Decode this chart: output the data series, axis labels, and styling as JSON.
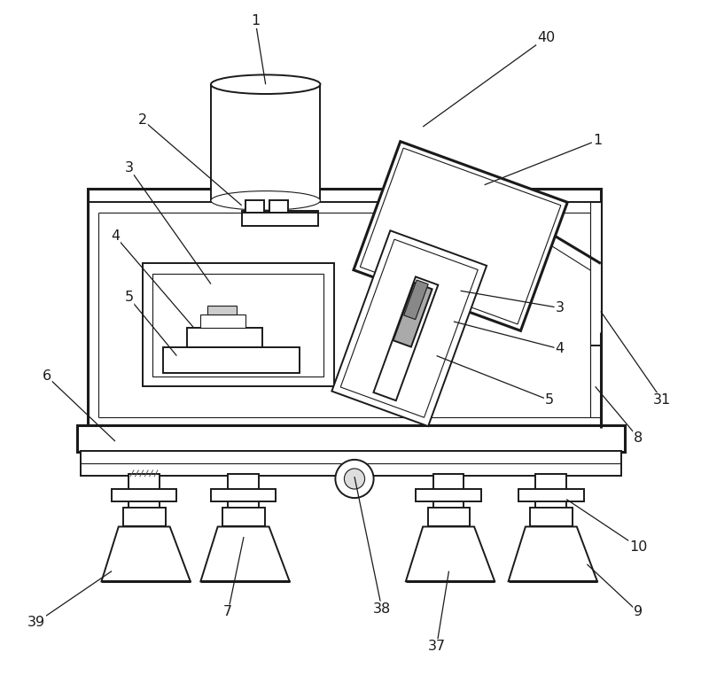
{
  "bg_color": "#ffffff",
  "line_color": "#1a1a1a",
  "lw": 1.4,
  "lw_thin": 0.8,
  "lw_thick": 2.2,
  "figsize": [
    8.0,
    7.8
  ],
  "dpi": 100
}
